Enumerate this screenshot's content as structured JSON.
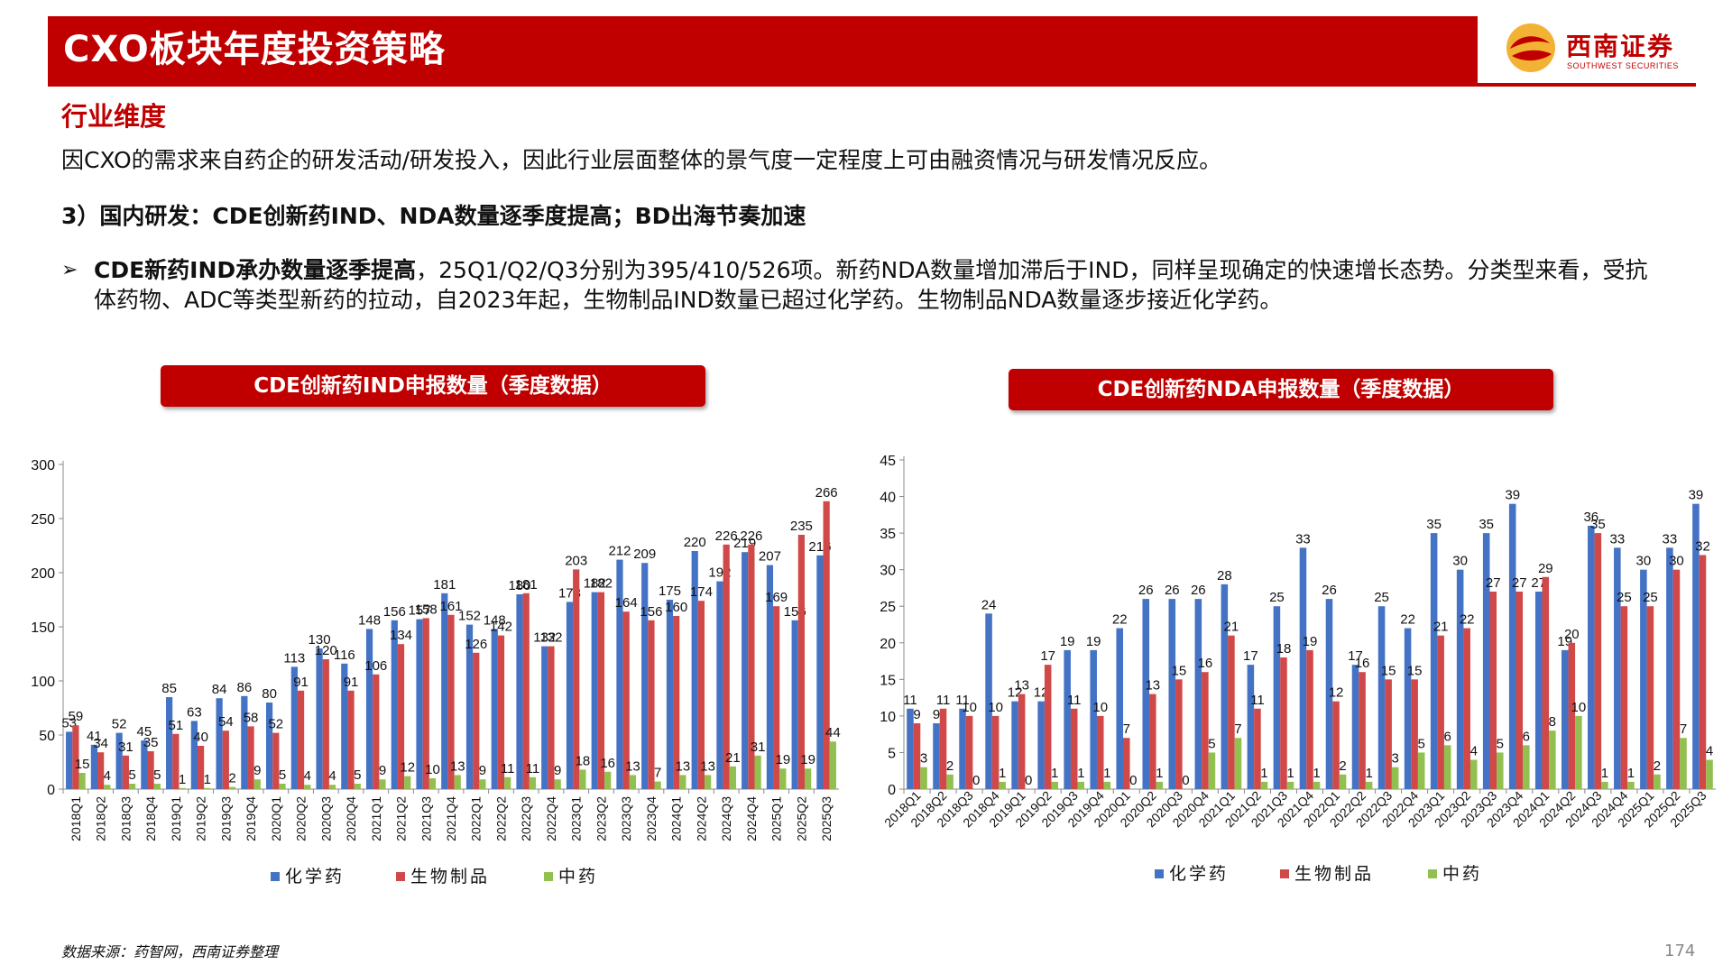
{
  "header": {
    "title": "CXO板块年度投资策略",
    "logo_cn": "西南证券",
    "logo_en": "SOUTHWEST SECURITIES"
  },
  "section_heading": "行业维度",
  "intro": "因CXO的需求来自药企的研发活动/研发投入，因此行业层面整体的景气度一定程度上可由融资情况与研发情况反应。",
  "sub_heading": "3）国内研发：CDE创新药IND、NDA数量逐季度提高；BD出海节奏加速",
  "bullet": {
    "arrow": "➢",
    "bold": "CDE新药IND承办数量逐季提高",
    "text": "，25Q1/Q2/Q3分别为395/410/526项。新药NDA数量增加滞后于IND，同样呈现确定的快速增长态势。分类型来看，受抗体药物、ADC等类型新药的拉动，自2023年起，生物制品IND数量已超过化学药。生物制品NDA数量逐步接近化学药。"
  },
  "footer": {
    "source": "数据来源：药智网，西南证券整理",
    "page": "174"
  },
  "colors": {
    "brand_red": "#c00000",
    "chemical": "#4472c4",
    "biologic": "#d04848",
    "tcm": "#92c050"
  },
  "chart_data": [
    {
      "type": "bar",
      "title": "CDE创新药IND申报数量（季度数据）",
      "categories": [
        "2018Q1",
        "2018Q2",
        "2018Q3",
        "2018Q4",
        "2019Q1",
        "2019Q2",
        "2019Q3",
        "2019Q4",
        "2020Q1",
        "2020Q2",
        "2020Q3",
        "2020Q4",
        "2021Q1",
        "2021Q2",
        "2021Q3",
        "2021Q4",
        "2022Q1",
        "2022Q2",
        "2022Q3",
        "2022Q4",
        "2023Q1",
        "2023Q2",
        "2023Q3",
        "2023Q4",
        "2024Q1",
        "2024Q2",
        "2024Q3",
        "2024Q4",
        "2025Q1",
        "2025Q2",
        "2025Q3"
      ],
      "series": [
        {
          "name": "化学药",
          "values": [
            53,
            41,
            52,
            45,
            85,
            63,
            84,
            86,
            80,
            113,
            130,
            116,
            148,
            156,
            157,
            181,
            152,
            148,
            180,
            132,
            173,
            182,
            212,
            209,
            175,
            220,
            192,
            219,
            207,
            156,
            216
          ]
        },
        {
          "name": "生物制品",
          "values": [
            59,
            34,
            31,
            35,
            51,
            40,
            54,
            58,
            52,
            91,
            120,
            91,
            106,
            134,
            158,
            161,
            126,
            142,
            181,
            132,
            203,
            182,
            164,
            156,
            160,
            174,
            226,
            226,
            169,
            235,
            266
          ]
        },
        {
          "name": "中药",
          "values": [
            15,
            4,
            5,
            5,
            1,
            1,
            2,
            9,
            5,
            4,
            4,
            5,
            9,
            12,
            10,
            13,
            9,
            11,
            11,
            9,
            18,
            16,
            13,
            7,
            13,
            13,
            21,
            31,
            19,
            19,
            44
          ]
        }
      ],
      "ylim": [
        0,
        300
      ],
      "yticks": [
        0,
        50,
        100,
        150,
        200,
        250,
        300
      ],
      "legend": "bottom",
      "grid": false
    },
    {
      "type": "bar",
      "title": "CDE创新药NDA申报数量（季度数据）",
      "categories": [
        "2018Q1",
        "2018Q2",
        "2018Q3",
        "2018Q4",
        "2019Q1",
        "2019Q2",
        "2019Q3",
        "2019Q4",
        "2020Q1",
        "2020Q2",
        "2020Q3",
        "2020Q4",
        "2021Q1",
        "2021Q2",
        "2021Q3",
        "2021Q4",
        "2022Q1",
        "2022Q2",
        "2022Q3",
        "2022Q4",
        "2023Q1",
        "2023Q2",
        "2023Q3",
        "2023Q4",
        "2024Q1",
        "2024Q2",
        "2024Q3",
        "2024Q4",
        "2025Q1",
        "2025Q2",
        "2025Q3"
      ],
      "series": [
        {
          "name": "化学药",
          "values": [
            11,
            9,
            11,
            24,
            12,
            12,
            19,
            19,
            22,
            26,
            26,
            26,
            28,
            17,
            25,
            33,
            26,
            17,
            25,
            22,
            35,
            30,
            35,
            39,
            27,
            19,
            36,
            33,
            30,
            33,
            39
          ]
        },
        {
          "name": "生物制品",
          "values": [
            9,
            11,
            10,
            10,
            13,
            17,
            11,
            10,
            7,
            13,
            15,
            16,
            21,
            11,
            18,
            19,
            12,
            16,
            15,
            15,
            21,
            22,
            27,
            27,
            29,
            20,
            35,
            25,
            25,
            30,
            32
          ]
        },
        {
          "name": "中药",
          "values": [
            3,
            2,
            0,
            1,
            0,
            1,
            1,
            1,
            0,
            1,
            0,
            5,
            7,
            1,
            1,
            1,
            2,
            1,
            3,
            5,
            6,
            4,
            5,
            6,
            8,
            10,
            1,
            1,
            2,
            7,
            4
          ]
        }
      ],
      "ylim": [
        0,
        45
      ],
      "yticks": [
        0,
        5,
        10,
        15,
        20,
        25,
        30,
        35,
        40,
        45
      ],
      "legend": "bottom",
      "grid": false
    }
  ]
}
